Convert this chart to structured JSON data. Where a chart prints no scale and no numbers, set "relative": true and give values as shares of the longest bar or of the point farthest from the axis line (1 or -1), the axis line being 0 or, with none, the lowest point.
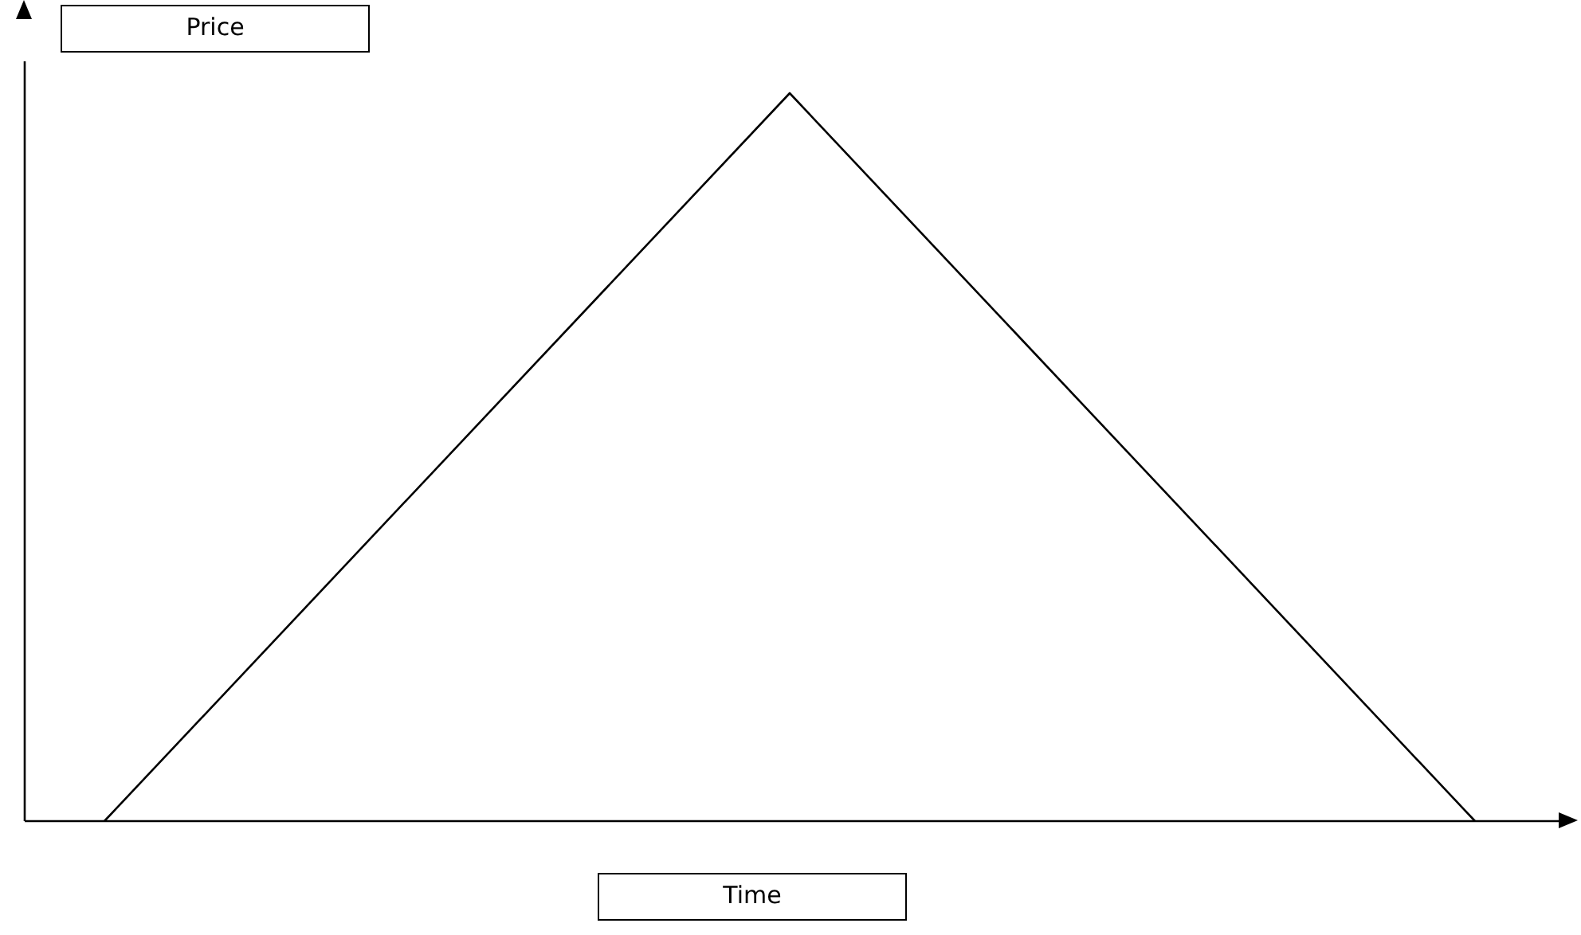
{
  "chart_data": {
    "type": "line",
    "relative": true,
    "xlabel": "Time",
    "ylabel": "Price",
    "categories": [
      null,
      null,
      null
    ],
    "series": [
      {
        "color": "#000000",
        "values": [
          0,
          1,
          0
        ]
      }
    ]
  }
}
